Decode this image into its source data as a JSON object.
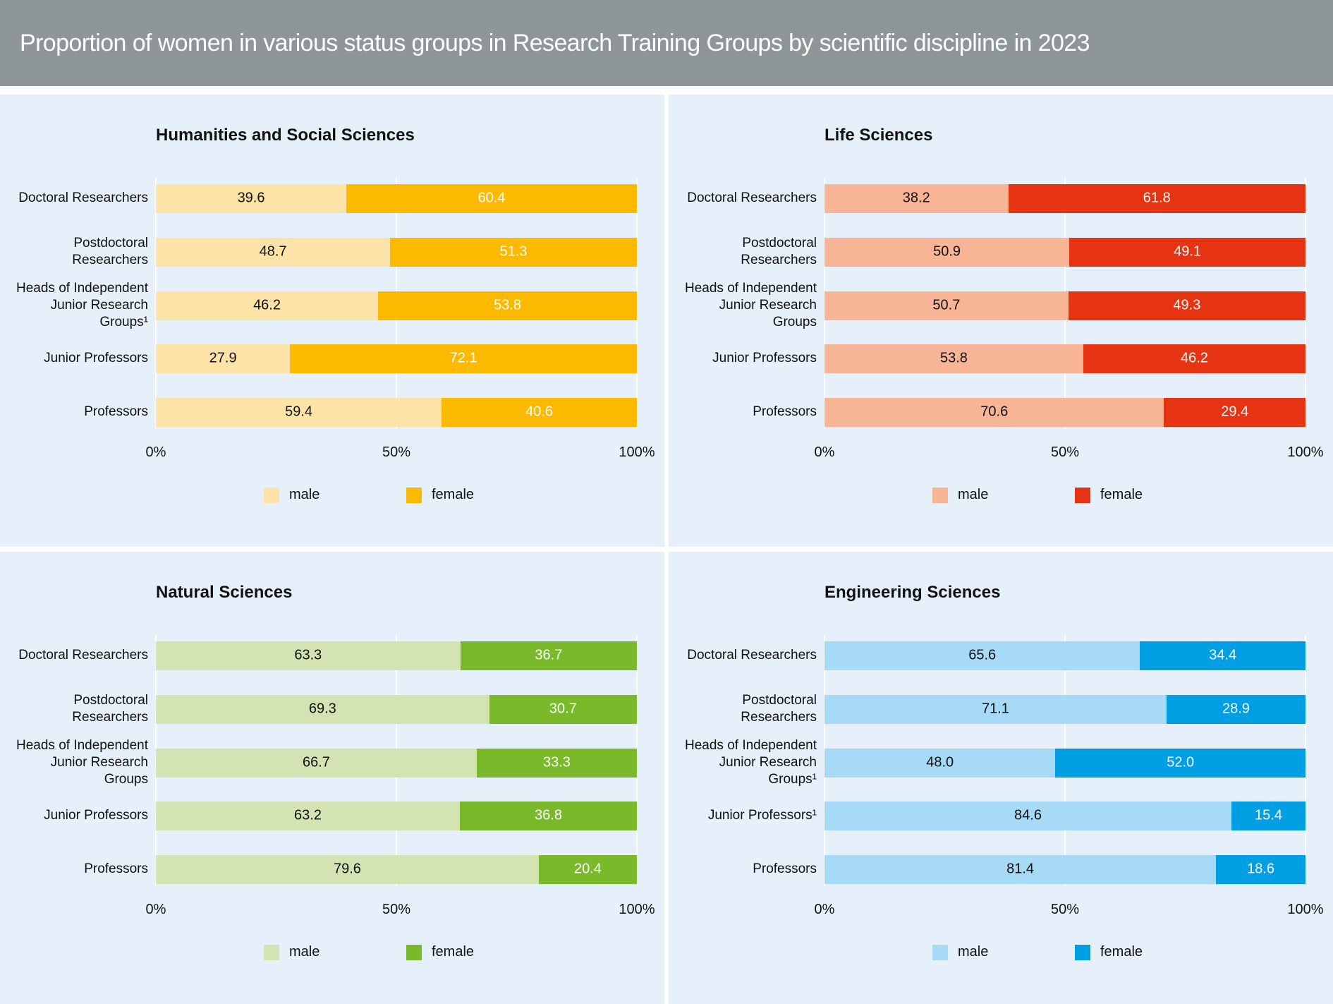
{
  "title": "Proportion of women in various status groups in Research Training Groups by scientific discipline in 2023",
  "chart_data": [
    {
      "type": "stacked-barh",
      "title": "Humanities and Social Sciences",
      "categories": [
        "Doctoral Researchers",
        "Postdoctoral Researchers",
        "Heads of Independent Junior Research Groups¹",
        "Junior Professors",
        "Professors"
      ],
      "series": [
        {
          "name": "male",
          "color": "#fde3a7",
          "values": [
            39.6,
            48.7,
            46.2,
            27.9,
            59.4
          ],
          "value_labels": [
            "39.6",
            "48.7",
            "46.2",
            "27.9",
            "59.4"
          ]
        },
        {
          "name": "female",
          "color": "#fbb900",
          "values": [
            60.4,
            51.3,
            53.8,
            72.1,
            40.6
          ],
          "value_labels": [
            "60.4",
            "51.3",
            "53.8",
            "72.1",
            "40.6"
          ]
        }
      ],
      "xlim": [
        0,
        100
      ],
      "xticks": [
        {
          "value": 0,
          "label": "0%"
        },
        {
          "value": 50,
          "label": "50%"
        },
        {
          "value": 100,
          "label": "100%"
        }
      ],
      "grid": true
    },
    {
      "type": "stacked-barh",
      "title": "Life Sciences",
      "categories": [
        "Doctoral Researchers",
        "Postdoctoral Researchers",
        "Heads of Independent Junior Research Groups",
        "Junior Professors",
        "Professors"
      ],
      "series": [
        {
          "name": "male",
          "color": "#f7b596",
          "values": [
            38.2,
            50.9,
            50.7,
            53.8,
            70.6
          ],
          "value_labels": [
            "38.2",
            "50.9",
            "50.7",
            "53.8",
            "70.6"
          ]
        },
        {
          "name": "female",
          "color": "#e63312",
          "values": [
            61.8,
            49.1,
            49.3,
            46.2,
            29.4
          ],
          "value_labels": [
            "61.8",
            "49.1",
            "49.3",
            "46.2",
            "29.4"
          ]
        }
      ],
      "xlim": [
        0,
        100
      ],
      "xticks": [
        {
          "value": 0,
          "label": "0%"
        },
        {
          "value": 50,
          "label": "50%"
        },
        {
          "value": 100,
          "label": "100%"
        }
      ],
      "grid": true
    },
    {
      "type": "stacked-barh",
      "title": "Natural Sciences",
      "categories": [
        "Doctoral Researchers",
        "Postdoctoral Researchers",
        "Heads of Independent Junior Research Groups",
        "Junior Professors",
        "Professors"
      ],
      "series": [
        {
          "name": "male",
          "color": "#d3e4b2",
          "values": [
            63.3,
            69.3,
            66.7,
            63.2,
            79.6
          ],
          "value_labels": [
            "63.3",
            "69.3",
            "66.7",
            "63.2",
            "79.6"
          ]
        },
        {
          "name": "female",
          "color": "#7ab929",
          "values": [
            36.7,
            30.7,
            33.3,
            36.8,
            20.4
          ],
          "value_labels": [
            "36.7",
            "30.7",
            "33.3",
            "36.8",
            "20.4"
          ]
        }
      ],
      "xlim": [
        0,
        100
      ],
      "xticks": [
        {
          "value": 0,
          "label": "0%"
        },
        {
          "value": 50,
          "label": "50%"
        },
        {
          "value": 100,
          "label": "100%"
        }
      ],
      "grid": true
    },
    {
      "type": "stacked-barh",
      "title": "Engineering Sciences",
      "categories": [
        "Doctoral Researchers",
        "Postdoctoral Researchers",
        "Heads of Independent Junior Research Groups¹",
        "Junior Professors¹",
        "Professors"
      ],
      "series": [
        {
          "name": "male",
          "color": "#a7daf6",
          "values": [
            65.6,
            71.1,
            48.0,
            84.6,
            81.4
          ],
          "value_labels": [
            "65.6",
            "71.1",
            "48.0",
            "84.6",
            "81.4"
          ]
        },
        {
          "name": "female",
          "color": "#009fe3",
          "values": [
            34.4,
            28.9,
            52.0,
            15.4,
            18.6
          ],
          "value_labels": [
            "34.4",
            "28.9",
            "52.0",
            "15.4",
            "18.6"
          ]
        }
      ],
      "xlim": [
        0,
        100
      ],
      "xticks": [
        {
          "value": 0,
          "label": "0%"
        },
        {
          "value": 50,
          "label": "50%"
        },
        {
          "value": 100,
          "label": "100%"
        }
      ],
      "grid": true
    }
  ]
}
